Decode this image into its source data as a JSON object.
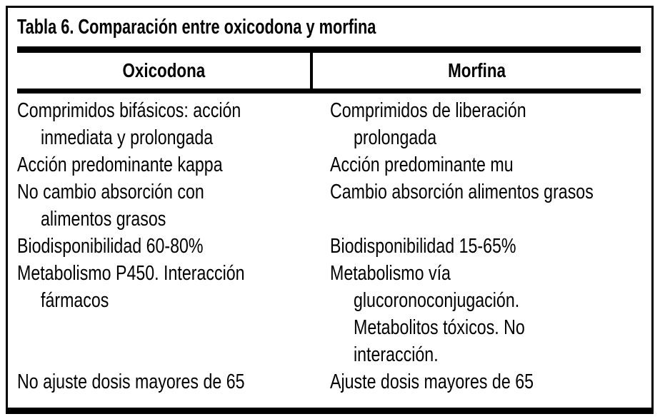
{
  "table": {
    "title": "Tabla 6. Comparación entre oxicodona y morfina",
    "columns": [
      "Oxicodona",
      "Morfina"
    ],
    "rows": [
      {
        "oxicodona": [
          "Comprimidos bifásicos: acción",
          "inmediata y prolongada"
        ],
        "morfina": [
          "Comprimidos de liberación",
          "prolongada"
        ]
      },
      {
        "oxicodona": [
          "Acción predominante kappa"
        ],
        "morfina": [
          "Acción predominante mu"
        ]
      },
      {
        "oxicodona": [
          "No cambio absorción con",
          "alimentos grasos"
        ],
        "morfina": [
          "Cambio absorción alimentos grasos"
        ]
      },
      {
        "oxicodona": [
          "Biodisponibilidad 60-80%"
        ],
        "morfina": [
          "Biodisponibilidad 15-65%"
        ]
      },
      {
        "oxicodona": [
          "Metabolismo P450. Interacción",
          "fármacos"
        ],
        "morfina": [
          "Metabolismo vía",
          "glucoronoconjugación.",
          "Metabolitos tóxicos. No",
          "interacción."
        ]
      },
      {
        "oxicodona": [
          "No ajuste dosis mayores de 65"
        ],
        "morfina": [
          "Ajuste dosis mayores de 65"
        ]
      }
    ],
    "colors": {
      "ink": "#000000",
      "background": "#ffffff"
    }
  }
}
